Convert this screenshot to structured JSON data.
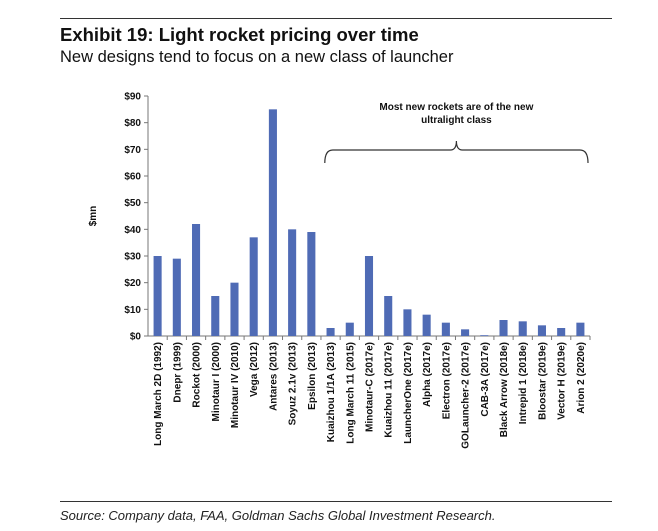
{
  "title": "Exhibit 19: Light rocket pricing over time",
  "subtitle": "New designs tend to focus on a new class of launcher",
  "source": "Source: Company data, FAA, Goldman Sachs Global Investment Research.",
  "chart_data": {
    "type": "bar",
    "title": "",
    "xlabel": "",
    "ylabel": "$mn",
    "ylim": [
      0,
      90
    ],
    "yticks": [
      "$0",
      "$10",
      "$20",
      "$30",
      "$40",
      "$50",
      "$60",
      "$70",
      "$80",
      "$90"
    ],
    "grid": false,
    "bar_color": "#4f6bb5",
    "categories": [
      "Long March 2D (1992)",
      "Dnepr (1999)",
      "Rockot (2000)",
      "Minotaur I (2000)",
      "Minotaur IV (2010)",
      "Vega (2012)",
      "Antares (2013)",
      "Soyuz 2.1v (2013)",
      "Epsilon (2013)",
      "Kuaizhou 1/1A (2013)",
      "Long March 11 (2015)",
      "Minotaur-C (2017e)",
      "Kuaizhou 11 (2017e)",
      "LauncherOne (2017e)",
      "Alpha (2017e)",
      "Electron (2017e)",
      "GOLauncher-2 (2017e)",
      "CAB-3A (2017e)",
      "Black Arrow (2018e)",
      "Intrepid 1 (2018e)",
      "Bloostar (2019e)",
      "Vector H (2019e)",
      "Arion 2 (2020e)"
    ],
    "values": [
      30,
      29,
      42,
      15,
      20,
      37,
      85,
      40,
      39,
      3,
      5,
      30,
      15,
      10,
      8,
      5,
      2.5,
      0.3,
      6,
      5.5,
      4,
      3,
      5
    ],
    "annotation": {
      "text_lines": [
        "Most new rockets are of the new",
        "ultralight class"
      ],
      "bracket_from": "Kuaizhou 1/1A (2013)",
      "bracket_to": "Arion 2 (2020e)"
    }
  }
}
